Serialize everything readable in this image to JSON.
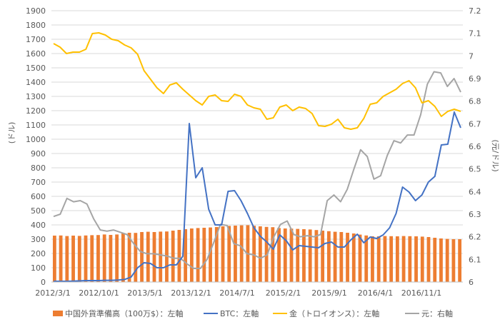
{
  "chart_data": {
    "type": "bar+line",
    "x_tick_labels": [
      "2012/3/1",
      "2012/10/1",
      "2013/5/1",
      "2013/12/1",
      "2014/7/1",
      "2015/2/1",
      "2015/9/1",
      "2016/4/1",
      "2016/11/1"
    ],
    "y_left": {
      "label": "(ドル)",
      "min": 0,
      "max": 1900,
      "step": 100
    },
    "y_right": {
      "label": "(元/ドル)",
      "min": 6.0,
      "max": 7.2,
      "step": 0.1
    },
    "colors": {
      "reserves": "#ED7D31",
      "btc": "#4472C4",
      "gold": "#FFC000",
      "cny": "#A5A5A5"
    },
    "series": [
      {
        "key": "reserves",
        "name": "中国外貨準備高（100万$）：左軸",
        "kind": "bar",
        "axis": "left",
        "values": [
          325,
          326,
          322,
          325,
          323,
          326,
          328,
          329,
          333,
          330,
          333,
          340,
          345,
          344,
          350,
          352,
          350,
          353,
          354,
          360,
          365,
          370,
          375,
          378,
          380,
          382,
          385,
          390,
          393,
          395,
          397,
          398,
          394,
          390,
          386,
          384,
          378,
          375,
          374,
          372,
          370,
          368,
          364,
          360,
          356,
          352,
          350,
          345,
          340,
          332,
          326,
          320,
          320,
          322,
          321,
          320,
          322,
          321,
          320,
          318,
          315,
          310,
          305,
          302,
          300,
          300
        ]
      },
      {
        "key": "btc",
        "name": "BTC：左軸",
        "kind": "line",
        "axis": "left",
        "values": [
          5,
          5,
          5,
          6,
          8,
          10,
          10,
          10,
          12,
          12,
          14,
          18,
          35,
          100,
          135,
          130,
          100,
          100,
          120,
          120,
          180,
          1110,
          730,
          800,
          510,
          400,
          400,
          635,
          640,
          570,
          480,
          380,
          320,
          280,
          230,
          330,
          290,
          225,
          255,
          250,
          245,
          240,
          270,
          280,
          245,
          245,
          295,
          335,
          275,
          315,
          305,
          330,
          380,
          480,
          665,
          630,
          570,
          610,
          700,
          740,
          960,
          965,
          1190,
          1080
        ]
      },
      {
        "key": "gold",
        "name": "金（トロイオンス）：左軸",
        "kind": "line",
        "axis": "left",
        "values": [
          1670,
          1645,
          1600,
          1610,
          1610,
          1630,
          1740,
          1745,
          1730,
          1700,
          1690,
          1660,
          1640,
          1595,
          1480,
          1420,
          1360,
          1320,
          1380,
          1395,
          1350,
          1310,
          1270,
          1240,
          1300,
          1310,
          1270,
          1265,
          1315,
          1300,
          1240,
          1220,
          1210,
          1140,
          1150,
          1225,
          1240,
          1200,
          1225,
          1215,
          1180,
          1095,
          1090,
          1105,
          1140,
          1080,
          1070,
          1080,
          1145,
          1245,
          1255,
          1300,
          1325,
          1350,
          1390,
          1410,
          1360,
          1255,
          1270,
          1230,
          1160,
          1195,
          1210,
          1195
        ]
      },
      {
        "key": "cny",
        "name": "元：右軸",
        "kind": "line",
        "axis": "right",
        "values": [
          6.29,
          6.3,
          6.37,
          6.355,
          6.36,
          6.345,
          6.28,
          6.23,
          6.225,
          6.23,
          6.22,
          6.21,
          6.17,
          6.135,
          6.125,
          6.125,
          6.12,
          6.115,
          6.105,
          6.105,
          6.08,
          6.06,
          6.06,
          6.1,
          6.175,
          6.255,
          6.25,
          6.17,
          6.16,
          6.125,
          6.12,
          6.105,
          6.12,
          6.2,
          6.255,
          6.27,
          6.21,
          6.2,
          6.205,
          6.2,
          6.21,
          6.36,
          6.385,
          6.355,
          6.41,
          6.5,
          6.585,
          6.555,
          6.455,
          6.47,
          6.56,
          6.625,
          6.615,
          6.65,
          6.65,
          6.74,
          6.875,
          6.93,
          6.925,
          6.865,
          6.9,
          6.84
        ]
      }
    ]
  }
}
